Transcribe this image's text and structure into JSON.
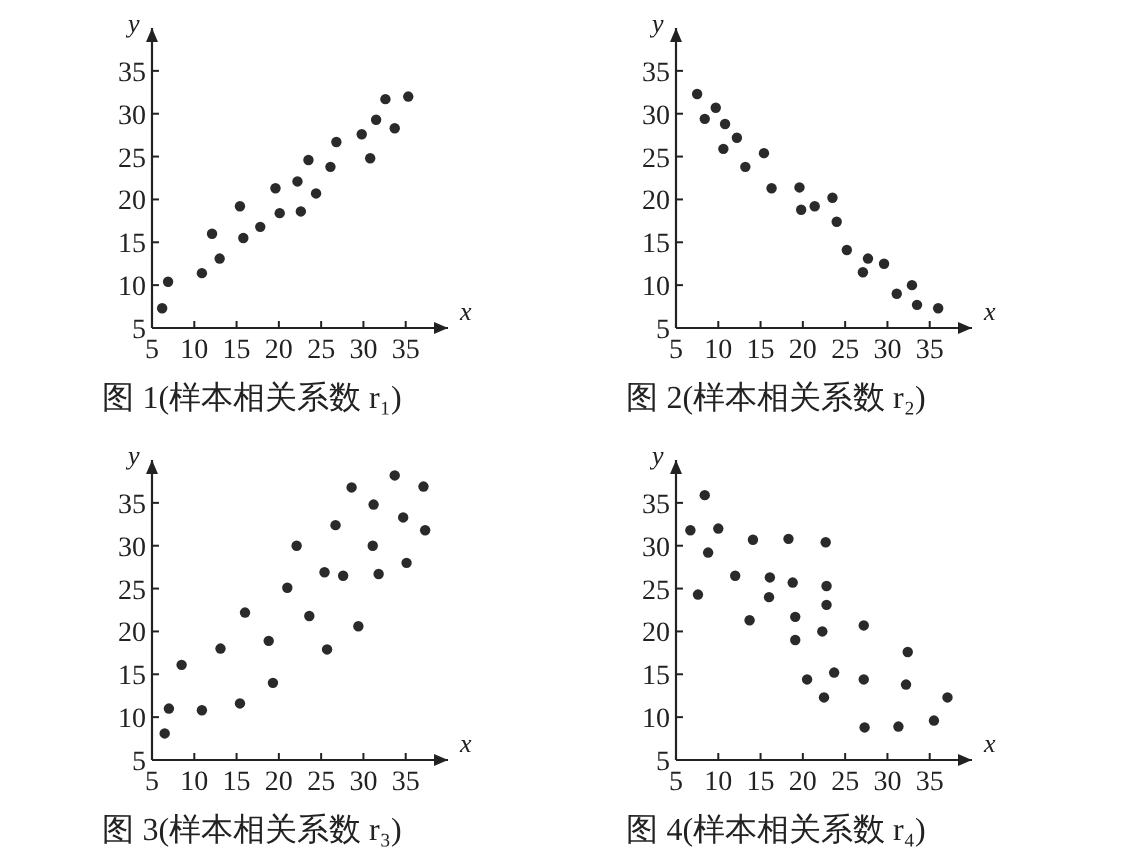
{
  "chart_data": [
    {
      "type": "scatter",
      "title": "图 1(样本相关系数 r₁)",
      "xlabel": "x",
      "ylabel": "y",
      "color": "#2a2a2a",
      "marker": "circle",
      "xlim": [
        5,
        40
      ],
      "ylim": [
        5,
        40
      ],
      "xticks": [
        5,
        10,
        15,
        20,
        25,
        30,
        35
      ],
      "yticks": [
        5,
        10,
        15,
        20,
        25,
        30,
        35
      ],
      "x": [
        6.2,
        6.9,
        10.9,
        12.1,
        13.0,
        15.4,
        15.8,
        17.8,
        19.6,
        20.1,
        22.2,
        22.6,
        23.5,
        24.4,
        26.1,
        26.8,
        29.8,
        30.8,
        31.5,
        32.6,
        33.7,
        35.3
      ],
      "values": [
        7.3,
        10.4,
        11.4,
        16.0,
        13.1,
        19.2,
        15.5,
        16.8,
        21.3,
        18.4,
        22.1,
        18.6,
        24.6,
        20.7,
        23.8,
        26.7,
        27.6,
        24.8,
        29.3,
        31.7,
        28.3,
        32.0
      ]
    },
    {
      "type": "scatter",
      "title": "图 2(样本相关系数 r₂)",
      "xlabel": "x",
      "ylabel": "y",
      "color": "#2a2a2a",
      "marker": "circle",
      "xlim": [
        5,
        40
      ],
      "ylim": [
        5,
        40
      ],
      "xticks": [
        5,
        10,
        15,
        20,
        25,
        30,
        35
      ],
      "yticks": [
        5,
        10,
        15,
        20,
        25,
        30,
        35
      ],
      "x": [
        7.5,
        8.4,
        9.7,
        10.8,
        10.6,
        12.2,
        13.2,
        15.4,
        16.3,
        19.6,
        19.8,
        21.4,
        23.5,
        24.0,
        25.2,
        27.1,
        27.7,
        29.6,
        31.1,
        32.9,
        33.5,
        36.0
      ],
      "values": [
        32.3,
        29.4,
        30.7,
        28.8,
        25.9,
        27.2,
        23.8,
        25.4,
        21.3,
        21.4,
        18.8,
        19.2,
        20.2,
        17.4,
        14.1,
        11.5,
        13.1,
        12.5,
        9.0,
        10.0,
        7.7,
        7.3
      ]
    },
    {
      "type": "scatter",
      "title": "图 3(样本相关系数 r₃)",
      "xlabel": "x",
      "ylabel": "y",
      "color": "#2a2a2a",
      "marker": "circle",
      "xlim": [
        5,
        40
      ],
      "ylim": [
        5,
        40
      ],
      "xticks": [
        5,
        10,
        15,
        20,
        25,
        30,
        35
      ],
      "yticks": [
        5,
        10,
        15,
        20,
        25,
        30,
        35
      ],
      "x": [
        6.5,
        7.0,
        8.5,
        10.9,
        13.1,
        15.4,
        16.0,
        18.8,
        19.3,
        21.0,
        22.1,
        23.6,
        25.4,
        25.7,
        26.7,
        27.6,
        28.6,
        29.4,
        31.1,
        31.2,
        31.8,
        33.7,
        34.7,
        35.1,
        37.1,
        37.3
      ],
      "values": [
        8.1,
        11.0,
        16.1,
        10.8,
        18.0,
        11.6,
        22.2,
        18.9,
        14.0,
        25.1,
        30.0,
        21.8,
        26.9,
        17.9,
        32.4,
        26.5,
        36.8,
        20.6,
        30.0,
        34.8,
        26.7,
        38.2,
        33.3,
        28.0,
        36.9,
        31.8
      ]
    },
    {
      "type": "scatter",
      "title": "图 4(样本相关系数 r₄)",
      "xlabel": "x",
      "ylabel": "y",
      "color": "#2a2a2a",
      "marker": "circle",
      "xlim": [
        5,
        40
      ],
      "ylim": [
        5,
        40
      ],
      "xticks": [
        5,
        10,
        15,
        20,
        25,
        30,
        35
      ],
      "yticks": [
        5,
        10,
        15,
        20,
        25,
        30,
        35
      ],
      "x": [
        6.7,
        7.6,
        8.4,
        8.8,
        10.0,
        12.0,
        13.7,
        14.1,
        16.1,
        16.0,
        18.3,
        18.8,
        19.1,
        19.1,
        20.5,
        22.3,
        22.5,
        22.7,
        22.8,
        22.8,
        23.7,
        27.2,
        27.2,
        27.3,
        31.3,
        32.2,
        32.4,
        35.5,
        37.1
      ],
      "values": [
        31.8,
        24.3,
        35.9,
        29.2,
        32.0,
        26.5,
        21.3,
        30.7,
        26.3,
        24.0,
        30.8,
        25.7,
        21.7,
        19.0,
        14.4,
        20.0,
        12.3,
        30.4,
        25.3,
        23.1,
        15.2,
        20.7,
        14.4,
        8.8,
        8.9,
        13.8,
        17.6,
        9.6,
        12.3
      ]
    }
  ]
}
